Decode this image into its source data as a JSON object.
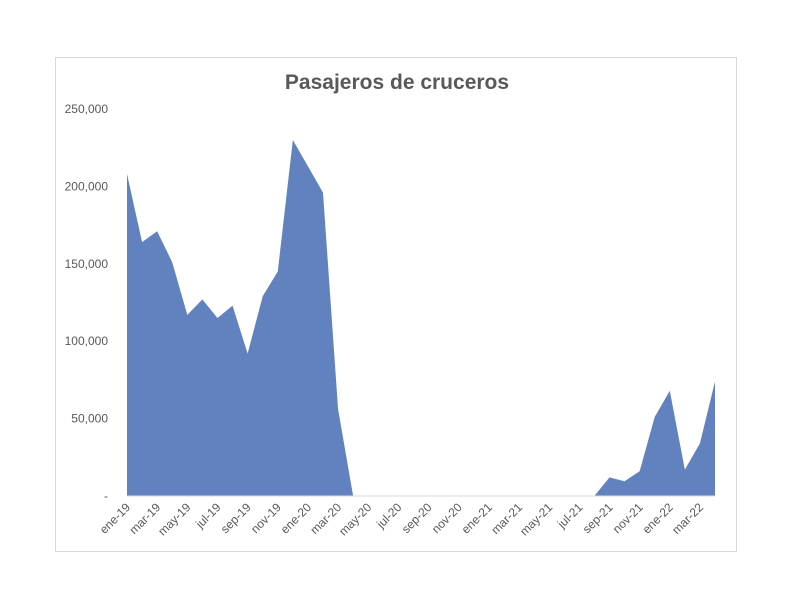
{
  "chart_data": {
    "type": "area",
    "title": "Pasajeros de cruceros",
    "xlabel": "",
    "ylabel": "",
    "ylim": [
      0,
      250000
    ],
    "grid": false,
    "legend": "none",
    "area_color": "#6282bf",
    "y_ticks": [
      0,
      50000,
      100000,
      150000,
      200000,
      250000
    ],
    "y_tick_labels": [
      "-",
      "50,000",
      "100,000",
      "150,000",
      "200,000",
      "250,000"
    ],
    "x_tick_labels": [
      "ene-19",
      "mar-19",
      "may-19",
      "jul-19",
      "sep-19",
      "nov-19",
      "ene-20",
      "mar-20",
      "may-20",
      "jul-20",
      "sep-20",
      "nov-20",
      "ene-21",
      "mar-21",
      "may-21",
      "jul-21",
      "sep-21",
      "nov-21",
      "ene-22",
      "mar-22"
    ],
    "categories": [
      "ene-19",
      "feb-19",
      "mar-19",
      "abr-19",
      "may-19",
      "jun-19",
      "jul-19",
      "ago-19",
      "sep-19",
      "oct-19",
      "nov-19",
      "dic-19",
      "ene-20",
      "feb-20",
      "mar-20",
      "abr-20",
      "may-20",
      "jun-20",
      "jul-20",
      "ago-20",
      "sep-20",
      "oct-20",
      "nov-20",
      "dic-20",
      "ene-21",
      "feb-21",
      "mar-21",
      "abr-21",
      "may-21",
      "jun-21",
      "jul-21",
      "ago-21",
      "sep-21",
      "oct-21",
      "nov-21",
      "dic-21",
      "ene-22",
      "feb-22",
      "mar-22",
      "abr-22"
    ],
    "values": [
      208000,
      164000,
      171000,
      151000,
      117000,
      127000,
      115000,
      123000,
      92000,
      129000,
      145000,
      230000,
      213000,
      196000,
      56000,
      0,
      0,
      0,
      0,
      0,
      0,
      0,
      0,
      0,
      0,
      0,
      0,
      0,
      0,
      0,
      0,
      0,
      12000,
      9500,
      16000,
      51000,
      68000,
      17000,
      34000,
      74000
    ]
  }
}
